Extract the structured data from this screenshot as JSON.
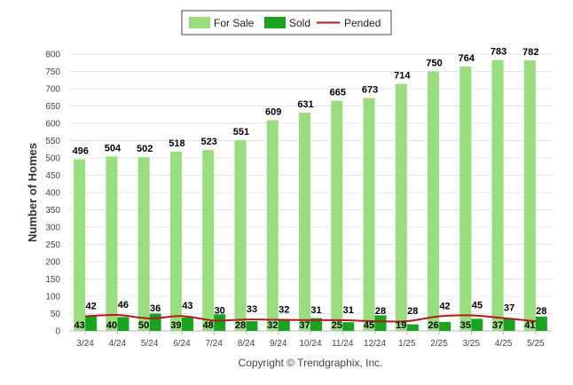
{
  "chart_data": {
    "type": "bar",
    "categories": [
      "3/24",
      "4/24",
      "5/24",
      "6/24",
      "7/24",
      "8/24",
      "9/24",
      "10/24",
      "11/24",
      "12/24",
      "1/25",
      "2/25",
      "3/25",
      "4/25",
      "5/25"
    ],
    "series": [
      {
        "name": "For Sale",
        "kind": "bar",
        "color": "#99dd7f",
        "values": [
          496,
          504,
          502,
          518,
          523,
          551,
          609,
          631,
          665,
          673,
          714,
          750,
          764,
          783,
          782
        ]
      },
      {
        "name": "Sold",
        "kind": "bar",
        "color": "#1aa321",
        "values": [
          43,
          40,
          50,
          39,
          48,
          28,
          32,
          37,
          25,
          45,
          19,
          26,
          35,
          37,
          41
        ]
      },
      {
        "name": "Pended",
        "kind": "line",
        "color": "#b01a1a",
        "values": [
          42,
          46,
          36,
          43,
          30,
          33,
          32,
          31,
          31,
          28,
          28,
          42,
          45,
          37,
          28
        ]
      }
    ],
    "xlabel": "",
    "ylabel": "Number of Homes",
    "ylim": [
      0,
      800
    ],
    "yticks": [
      0,
      50,
      100,
      150,
      200,
      250,
      300,
      350,
      400,
      450,
      500,
      550,
      600,
      650,
      700,
      750,
      800
    ],
    "grid": true,
    "legend": "top-center"
  },
  "footer": "Copyright © Trendgraphix, Inc."
}
